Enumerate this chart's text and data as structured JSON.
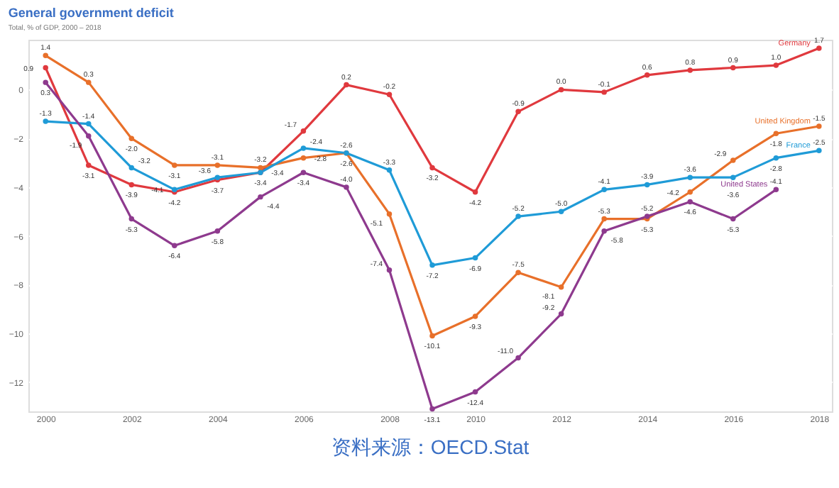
{
  "chart_data": {
    "type": "line",
    "title": "General government deficit",
    "subtitle": "Total, % of GDP, 2000 – 2018",
    "x": [
      2000,
      2001,
      2002,
      2003,
      2004,
      2005,
      2006,
      2007,
      2008,
      2009,
      2010,
      2011,
      2012,
      2013,
      2014,
      2015,
      2016,
      2017,
      2018
    ],
    "series": [
      {
        "name": "Germany",
        "color": "#e0393e",
        "values": [
          0.9,
          -3.1,
          -3.9,
          -4.2,
          -3.7,
          -3.4,
          -1.7,
          0.2,
          -0.2,
          -3.2,
          -4.2,
          -0.9,
          0.0,
          -0.1,
          0.6,
          0.8,
          0.9,
          1.0,
          1.7
        ],
        "value_labels": [
          "0.9",
          "-3.1",
          "-3.9",
          "-4.2",
          "-3.7",
          "-3.4",
          "-1.7",
          "0.2",
          "-0.2",
          "-3.2",
          "-4.2",
          "-0.9",
          "0.0",
          "-0.1",
          "0.6",
          "0.8",
          "0.9",
          "1.0",
          "1.7"
        ]
      },
      {
        "name": "United Kingdom",
        "color": "#e8702a",
        "values": [
          1.4,
          0.3,
          -2.0,
          -3.1,
          -3.1,
          -3.2,
          -2.8,
          -2.6,
          -5.1,
          -10.1,
          -9.3,
          -7.5,
          -8.1,
          -5.3,
          -5.3,
          -4.2,
          -2.9,
          -1.8,
          -1.5
        ],
        "value_labels": [
          "1.4",
          "0.3",
          "-2.0",
          "-3.1",
          "-3.1",
          "-3.2",
          "-2.8",
          "-2.6",
          "-5.1",
          "-10.1",
          "-9.3",
          "-7.5",
          "-8.1",
          "-5.3",
          "-5.3",
          "-4.2",
          "-2.9",
          "-1.8",
          "-1.5"
        ]
      },
      {
        "name": "France",
        "color": "#1f9bd7",
        "values": [
          -1.3,
          -1.4,
          -3.2,
          -4.1,
          -3.6,
          -3.4,
          -2.4,
          -2.6,
          -3.3,
          -7.2,
          -6.9,
          -5.2,
          -5.0,
          -4.1,
          -3.9,
          -3.6,
          -3.6,
          -2.8,
          -2.5
        ],
        "value_labels": [
          "-1.3",
          "-1.4",
          "-3.2",
          "-4.1",
          "-3.6",
          "-3.4",
          "-2.4",
          "-2.6",
          "-3.3",
          "-7.2",
          "-6.9",
          "-5.2",
          "-5.0",
          "-4.1",
          "-3.9",
          "-3.6",
          "-3.6",
          "-2.8",
          "-2.5"
        ]
      },
      {
        "name": "United States",
        "color": "#8e3a8e",
        "values": [
          0.3,
          -1.9,
          -5.3,
          -6.4,
          -5.8,
          -4.4,
          -3.4,
          -4.0,
          -7.4,
          -13.1,
          -12.4,
          -11.0,
          -9.2,
          -5.8,
          -5.2,
          -4.6,
          -5.3,
          -4.1,
          null
        ],
        "value_labels": [
          "0.3",
          "-1.9",
          "-5.3",
          "-6.4",
          "-5.8",
          "-4.4",
          "-3.4",
          "-4.0",
          "-7.4",
          "-13.1",
          "-12.4",
          "-11.0",
          "-9.2",
          "-5.8",
          "-5.2",
          "-4.6",
          "-5.3",
          "-4.1",
          null
        ]
      }
    ],
    "xlim": [
      1999.6,
      2018.3
    ],
    "xticks": [
      2000,
      2002,
      2004,
      2006,
      2008,
      2010,
      2012,
      2014,
      2016,
      2018
    ],
    "ylim": [
      -13.2,
      2.05
    ],
    "yticks": [
      0,
      -2,
      -4,
      -6,
      -8,
      -10,
      -12
    ],
    "grid": "y",
    "legend": false,
    "marker": "circle",
    "line_style": "solid",
    "annotations": [
      "资料来源：OECD.Stat"
    ]
  }
}
